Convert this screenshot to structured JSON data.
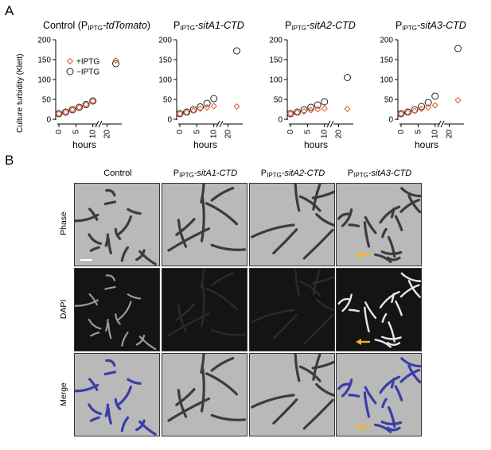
{
  "panel_a": {
    "letter": "A",
    "y_axis_label": "Culture turbidity (Klett)",
    "x_axis_label": "hours",
    "legend": [
      {
        "label": "+IPTG",
        "color": "#e8532f",
        "marker": "diamond"
      },
      {
        "label": "−IPTG",
        "color": "#222222",
        "marker": "circle"
      }
    ]
  },
  "chart_data": [
    {
      "type": "scatter",
      "title_prefix": "Control (P",
      "title_sub": "IPTG",
      "title_italic": "-tdTomato",
      "title_suffix": ")",
      "xlabel": "hours",
      "ylabel": "Culture turbidity (Klett)",
      "ylim": [
        0,
        200
      ],
      "yticks": [
        0,
        50,
        100,
        150,
        200
      ],
      "xticks": [
        0,
        5,
        10,
        20
      ],
      "x_axis_break": true,
      "series": [
        {
          "name": "+IPTG",
          "x": [
            0,
            2,
            4,
            6,
            8,
            10,
            22
          ],
          "y": [
            14,
            18,
            24,
            30,
            37,
            46,
            148
          ]
        },
        {
          "name": "−IPTG",
          "x": [
            0,
            2,
            4,
            6,
            8,
            10,
            22
          ],
          "y": [
            14,
            18,
            24,
            30,
            37,
            46,
            140
          ]
        }
      ]
    },
    {
      "type": "scatter",
      "title_prefix": "P",
      "title_sub": "IPTG",
      "title_italic": "-sitA1-CTD",
      "title_suffix": "",
      "xlabel": "hours",
      "ylim": [
        0,
        200
      ],
      "yticks": [
        0,
        50,
        100,
        150,
        200
      ],
      "xticks": [
        0,
        5,
        10,
        20
      ],
      "x_axis_break": true,
      "series": [
        {
          "name": "+IPTG",
          "x": [
            0,
            2,
            4,
            6,
            8,
            10,
            22
          ],
          "y": [
            14,
            17,
            22,
            27,
            30,
            33,
            32
          ]
        },
        {
          "name": "−IPTG",
          "x": [
            0,
            2,
            4,
            6,
            8,
            10,
            22
          ],
          "y": [
            14,
            18,
            24,
            31,
            40,
            52,
            172
          ]
        }
      ]
    },
    {
      "type": "scatter",
      "title_prefix": "P",
      "title_sub": "IPTG",
      "title_italic": "-sitA2-CTD",
      "title_suffix": "",
      "xlabel": "hours",
      "ylim": [
        0,
        200
      ],
      "yticks": [
        0,
        50,
        100,
        150,
        200
      ],
      "xticks": [
        0,
        5,
        10,
        20
      ],
      "x_axis_break": true,
      "series": [
        {
          "name": "+IPTG",
          "x": [
            0,
            2,
            4,
            6,
            8,
            10,
            22
          ],
          "y": [
            14,
            17,
            20,
            23,
            25,
            27,
            26
          ]
        },
        {
          "name": "−IPTG",
          "x": [
            0,
            2,
            4,
            6,
            8,
            10,
            22
          ],
          "y": [
            14,
            18,
            24,
            30,
            36,
            44,
            105
          ]
        }
      ]
    },
    {
      "type": "scatter",
      "title_prefix": "P",
      "title_sub": "IPTG",
      "title_italic": "-sitA3-CTD",
      "title_suffix": "",
      "xlabel": "hours",
      "ylim": [
        0,
        200
      ],
      "yticks": [
        0,
        50,
        100,
        150,
        200
      ],
      "xticks": [
        0,
        5,
        10,
        20
      ],
      "x_axis_break": true,
      "series": [
        {
          "name": "+IPTG",
          "x": [
            0,
            2,
            4,
            6,
            8,
            10,
            22
          ],
          "y": [
            14,
            17,
            21,
            26,
            30,
            35,
            48
          ]
        },
        {
          "name": "−IPTG",
          "x": [
            0,
            2,
            4,
            6,
            8,
            10,
            22
          ],
          "y": [
            14,
            18,
            24,
            32,
            42,
            58,
            178
          ]
        }
      ]
    }
  ],
  "panel_b": {
    "letter": "B",
    "columns": [
      {
        "prefix": "Control",
        "sub": "",
        "italic": ""
      },
      {
        "prefix": "P",
        "sub": "IPTG",
        "italic": "-sitA1-CTD"
      },
      {
        "prefix": "P",
        "sub": "IPTG",
        "italic": "-sitA2-CTD"
      },
      {
        "prefix": "P",
        "sub": "IPTG",
        "italic": "-sitA3-CTD"
      }
    ],
    "rows": [
      "Phase",
      "DAPI",
      "Merge"
    ],
    "arrow_color": "#f0b429"
  }
}
